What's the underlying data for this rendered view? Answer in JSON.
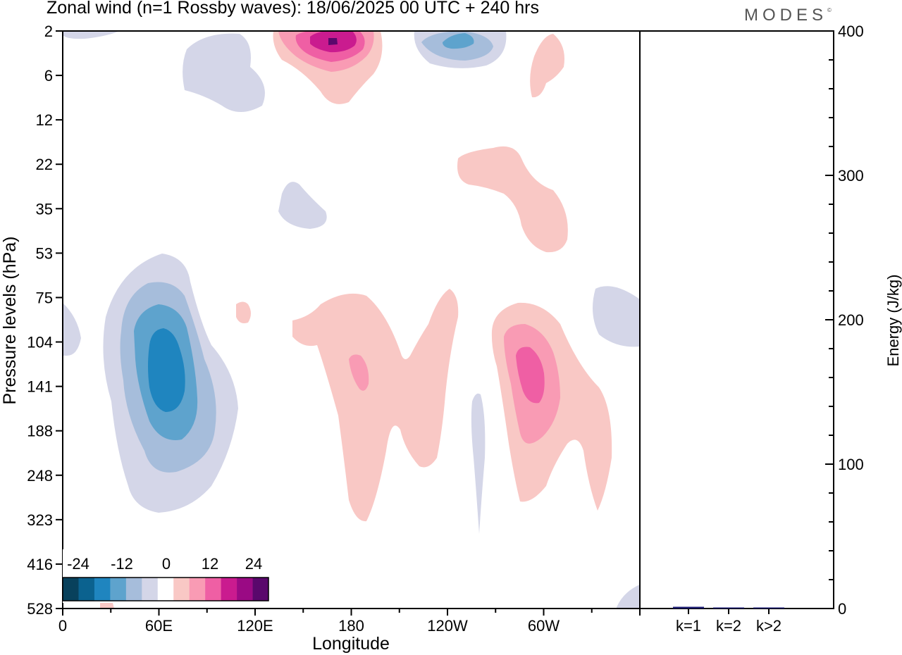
{
  "title": "Zonal wind (n=1 Rossby waves):  18/06/2025  00 UTC  + 240 hrs",
  "logo": {
    "text": "MODES",
    "mark": "©"
  },
  "colors": {
    "negative": [
      "#08415c",
      "#0b628f",
      "#1f85bf",
      "#5ea3cd",
      "#a6bddb",
      "#d4d6e8"
    ],
    "zero": "#ffffff",
    "positive": [
      "#f9c8c5",
      "#f99bb4",
      "#ef5fa4",
      "#ca1b8f",
      "#9a0a84",
      "#5a086c"
    ],
    "energy_bar": "#1a1a6e"
  },
  "chart_data": [
    {
      "type": "heatmap",
      "xlabel": "Longitude",
      "ylabel": "Pressure levels (hPa)",
      "x_ticks": [
        "0",
        "60E",
        "120E",
        "180",
        "120W",
        "60W"
      ],
      "x_range_deg": [
        0,
        360
      ],
      "y_ticks": [
        "2",
        "6",
        "12",
        "22",
        "35",
        "53",
        "75",
        "104",
        "141",
        "188",
        "248",
        "323",
        "416",
        "528"
      ],
      "colorbar": {
        "labels": [
          "-24",
          "-12",
          "0",
          "12",
          "24"
        ],
        "levels": [
          -30,
          -25,
          -20,
          -15,
          -10,
          -5,
          0,
          5,
          10,
          15,
          20,
          25,
          30
        ]
      },
      "features": [
        {
          "lon": 60,
          "level": "128",
          "value": -15
        },
        {
          "lon": 165,
          "level": "2",
          "value": 26
        },
        {
          "lon": 245,
          "level": "3",
          "value": -12
        },
        {
          "lon": 290,
          "level": "128",
          "value": 14
        },
        {
          "lon": 185,
          "level": "128",
          "value": 9
        },
        {
          "lon": 240,
          "level": "35",
          "value": 5
        }
      ]
    },
    {
      "type": "bar",
      "ylabel": "Energy (J/kg)",
      "categories": [
        "k=1",
        "k=2",
        "k>2"
      ],
      "values": [
        1.2,
        0.4,
        0.5
      ],
      "ylim": [
        0,
        400
      ],
      "y_ticks": [
        "0",
        "100",
        "200",
        "300",
        "400"
      ]
    }
  ]
}
